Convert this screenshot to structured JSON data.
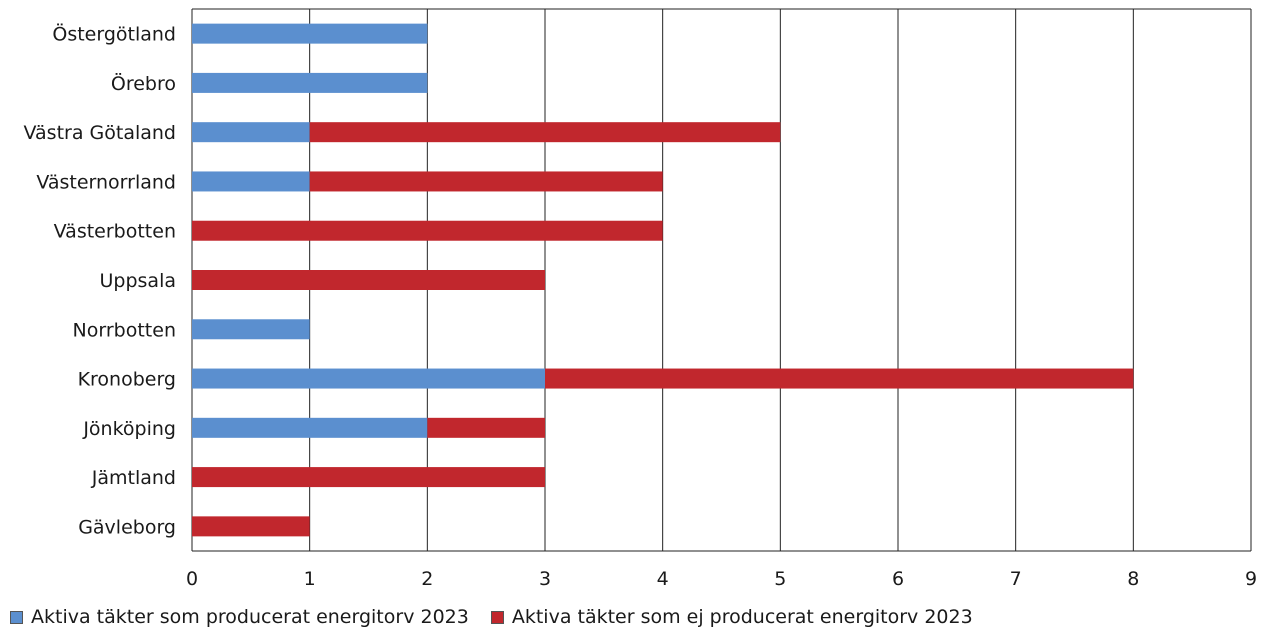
{
  "chart_data": {
    "type": "bar",
    "orientation": "horizontal",
    "stacked": true,
    "categories": [
      "Östergötland",
      "Örebro",
      "Västra Götaland",
      "Västernorrland",
      "Västerbotten",
      "Uppsala",
      "Norrbotten",
      "Kronoberg",
      "Jönköping",
      "Jämtland",
      "Gävleborg"
    ],
    "series": [
      {
        "name": "Aktiva täkter som producerat energitorv 2023",
        "color": "#5b8fcf",
        "values": [
          2,
          2,
          1,
          1,
          0,
          0,
          1,
          3,
          2,
          0,
          0
        ]
      },
      {
        "name": "Aktiva täkter som ej producerat energitorv 2023",
        "color": "#c1272d",
        "values": [
          0,
          0,
          4,
          3,
          4,
          3,
          0,
          5,
          1,
          3,
          1
        ]
      }
    ],
    "xlim": [
      0,
      9
    ],
    "xticks": [
      "0",
      "1",
      "2",
      "3",
      "4",
      "5",
      "6",
      "7",
      "8",
      "9"
    ],
    "grid": true,
    "legend_position": "bottom"
  }
}
